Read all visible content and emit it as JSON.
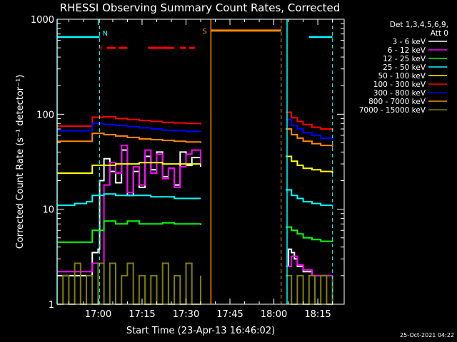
{
  "chart_data": {
    "type": "line",
    "title": "RHESSI Observing Summary Count Rates, Corrected",
    "xlabel": "Start Time (23-Apr-13 16:46:02)",
    "ylabel": "Corrected Count Rate (s⁻¹ detector⁻¹)",
    "x_unit": "minutes after 16:46:02",
    "xlim": [
      0,
      98
    ],
    "x_ticks": [
      {
        "x": 14,
        "label": "17:00"
      },
      {
        "x": 29,
        "label": "17:15"
      },
      {
        "x": 44,
        "label": "17:30"
      },
      {
        "x": 59,
        "label": "17:45"
      },
      {
        "x": 74,
        "label": "18:00"
      },
      {
        "x": 89,
        "label": "18:15"
      }
    ],
    "ylim": [
      1,
      1000
    ],
    "yscale": "log",
    "y_ticks": [
      {
        "y": 1,
        "label": "1"
      },
      {
        "y": 10,
        "label": "10"
      },
      {
        "y": 100,
        "label": "100"
      },
      {
        "y": 1000,
        "label": "1000"
      }
    ],
    "legend": {
      "placement": "top-right, outside",
      "header": [
        "Det 1,3,4,5,6,9,",
        "Att 0"
      ]
    },
    "series": [
      {
        "name": "3 - 6 keV",
        "color": "#ffffff",
        "segments": [
          {
            "x": [
              0,
              10,
              12,
              14,
              14.5,
              16,
              18,
              20,
              22,
              24,
              26,
              28,
              30,
              32,
              34,
              36,
              38,
              40,
              42,
              44,
              46,
              49
            ],
            "y": [
              2,
              2,
              3.5,
              3.8,
              20,
              34,
              25,
              19,
              42,
              14,
              25,
              17,
              36,
              26,
              40,
              22,
              27,
              18,
              40,
              29,
              35,
              28
            ]
          },
          {
            "x": [
              78,
              79,
              80,
              81,
              82,
              84,
              87,
              90,
              94
            ],
            "y": [
              2.5,
              3.8,
              3.5,
              3,
              2.5,
              2.2,
              2,
              2,
              2
            ]
          }
        ]
      },
      {
        "name": "6 - 12 keV",
        "color": "#ff00ff",
        "segments": [
          {
            "x": [
              0,
              10,
              12,
              14,
              16,
              18,
              20,
              22,
              24,
              26,
              28,
              30,
              32,
              34,
              36,
              38,
              40,
              42,
              44,
              46,
              49
            ],
            "y": [
              2.2,
              2.2,
              2.7,
              2.7,
              18,
              31,
              24,
              47,
              15,
              28,
              18,
              42,
              24,
              38,
              21,
              27,
              17,
              28,
              38,
              42,
              30
            ]
          },
          {
            "x": [
              78,
              80,
              82,
              84,
              87,
              90,
              94
            ],
            "y": [
              2.5,
              3.2,
              2.6,
              2.3,
              2,
              2,
              2
            ]
          }
        ]
      },
      {
        "name": "12 - 25 keV",
        "color": "#00ff00",
        "segments": [
          {
            "x": [
              0,
              10,
              12,
              16,
              20,
              24,
              28,
              32,
              36,
              40,
              44,
              49
            ],
            "y": [
              4.5,
              4.5,
              6,
              7.5,
              7,
              7.5,
              7,
              7,
              7.2,
              7,
              7,
              6.8
            ]
          },
          {
            "x": [
              78,
              80,
              82,
              84,
              87,
              90,
              94
            ],
            "y": [
              6.5,
              6,
              5.5,
              5,
              4.8,
              4.6,
              4.5
            ]
          }
        ]
      },
      {
        "name": "25 - 50 keV",
        "color": "#00ffff",
        "segments": [
          {
            "x": [
              0,
              6,
              10,
              12,
              16,
              20,
              24,
              28,
              32,
              36,
              40,
              44,
              49
            ],
            "y": [
              11,
              11.5,
              12,
              14,
              14.5,
              14,
              14,
              14,
              13.5,
              13.5,
              13,
              13,
              13
            ]
          },
          {
            "x": [
              78,
              80,
              82,
              84,
              87,
              90,
              94
            ],
            "y": [
              16,
              14,
              13,
              12,
              11.5,
              11,
              11
            ]
          }
        ]
      },
      {
        "name": "50 - 100 keV",
        "color": "#ffff00",
        "segments": [
          {
            "x": [
              0,
              10,
              12,
              16,
              20,
              24,
              28,
              32,
              36,
              40,
              44,
              49
            ],
            "y": [
              24,
              24,
              29,
              29,
              30,
              30,
              31,
              31,
              30,
              30,
              30,
              30
            ]
          },
          {
            "x": [
              78,
              80,
              82,
              84,
              87,
              90,
              94
            ],
            "y": [
              36,
              32,
              29,
              27,
              26,
              25,
              24
            ]
          }
        ]
      },
      {
        "name": "100 - 300 keV",
        "color": "#ff0000",
        "segments": [
          {
            "x": [
              0,
              10,
              12,
              16,
              20,
              24,
              28,
              32,
              36,
              40,
              44,
              49
            ],
            "y": [
              75,
              75,
              93,
              94,
              90,
              88,
              86,
              84,
              82,
              81,
              80,
              78
            ]
          },
          {
            "x": [
              78,
              80,
              82,
              84,
              87,
              90,
              94
            ],
            "y": [
              105,
              92,
              84,
              78,
              73,
              70,
              67
            ]
          }
        ]
      },
      {
        "name": "300 - 800 keV",
        "color": "#0000ff",
        "segments": [
          {
            "x": [
              0,
              10,
              12,
              16,
              20,
              24,
              28,
              32,
              36,
              40,
              44,
              49
            ],
            "y": [
              67,
              67,
              80,
              78,
              76,
              74,
              72,
              70,
              68,
              67,
              66,
              65
            ]
          },
          {
            "x": [
              78,
              80,
              82,
              84,
              87,
              90,
              94
            ],
            "y": [
              88,
              76,
              70,
              64,
              60,
              56,
              53
            ]
          }
        ]
      },
      {
        "name": "800 - 7000 keV",
        "color": "#ff8800",
        "segments": [
          {
            "x": [
              0,
              10,
              12,
              16,
              20,
              24,
              28,
              32,
              36,
              40,
              44,
              49
            ],
            "y": [
              52,
              52,
              63,
              61,
              59,
              57,
              55,
              54,
              53,
              52,
              51,
              50
            ]
          },
          {
            "x": [
              78,
              80,
              82,
              84,
              87,
              90,
              94
            ],
            "y": [
              70,
              61,
              56,
              52,
              49,
              47,
              45
            ]
          }
        ]
      },
      {
        "name": "7000 - 15000 keV",
        "color": "#808000",
        "segments": [
          {
            "x": [
              0,
              2,
              4,
              6,
              8,
              10,
              12,
              14,
              16,
              18,
              20,
              22,
              24,
              26,
              28,
              30,
              32,
              34,
              36,
              38,
              40,
              42,
              44,
              46,
              49
            ],
            "y": [
              1,
              2,
              1,
              2.7,
              1,
              2,
              1,
              2.7,
              1,
              2.7,
              1,
              2,
              2.7,
              1,
              2,
              1,
              2,
              1,
              2.7,
              1,
              2,
              1,
              2.7,
              1,
              2
            ]
          },
          {
            "x": [
              78,
              80,
              82,
              84,
              86,
              88,
              90,
              92,
              94
            ],
            "y": [
              2,
              1,
              2,
              1,
              2,
              1,
              2,
              1,
              2
            ]
          }
        ]
      }
    ],
    "annotations": {
      "night_marker": {
        "label": "N",
        "color": "#00ffff",
        "level": 650,
        "spans": [
          [
            0,
            14.5
          ],
          [
            86,
            94
          ]
        ],
        "dashed_x": [
          14.5,
          94
        ]
      },
      "solid_verticals": [
        {
          "x": 0,
          "color": "#00ffff"
        },
        {
          "x": 78.5,
          "color": "#00ffff"
        },
        {
          "x": 52.5,
          "color": "#ff8800"
        }
      ],
      "saa_marker": {
        "label": "S",
        "color": "#ff8800",
        "level": 760,
        "span": [
          52.5,
          76.5
        ],
        "dashed_x": 76.5
      },
      "flare_marker": {
        "label": "F",
        "color": "#ff0000",
        "level": 500,
        "segments": [
          [
            17,
            20
          ],
          [
            21,
            24
          ],
          [
            31,
            40
          ],
          [
            42,
            44
          ],
          [
            45,
            47
          ]
        ]
      }
    }
  },
  "footer_date": "25-Oct-2021 04:22"
}
